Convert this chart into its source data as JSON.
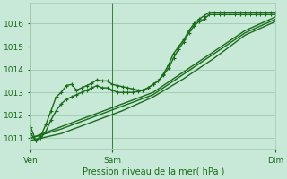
{
  "title": "",
  "xlabel": "Pression niveau de la mer( hPa )",
  "ylabel": "",
  "bg_color": "#c8e8d8",
  "grid_color": "#a0c8b0",
  "line_color": "#1a6b1a",
  "ylim": [
    1010.5,
    1016.9
  ],
  "xlim": [
    0,
    48
  ],
  "xtick_positions": [
    0,
    16,
    48
  ],
  "xtick_labels": [
    "Ven",
    "Sam",
    "Dim"
  ],
  "ytick_positions": [
    1011,
    1012,
    1013,
    1014,
    1015,
    1016
  ],
  "ytick_labels": [
    "1011",
    "1012",
    "1013",
    "1014",
    "1015",
    "1016"
  ],
  "series": [
    {
      "x": [
        0,
        1,
        2,
        3,
        4,
        5,
        6,
        7,
        8,
        9,
        10,
        11,
        12,
        13,
        14,
        15,
        16,
        17,
        18,
        19,
        20,
        21,
        22,
        23,
        24,
        25,
        26,
        27,
        28,
        29,
        30,
        31,
        32,
        33,
        34,
        35,
        36,
        37,
        38,
        39,
        40,
        41,
        42,
        43,
        44,
        45,
        46,
        47,
        48
      ],
      "y": [
        1011.5,
        1010.9,
        1011.1,
        1011.6,
        1012.2,
        1012.8,
        1013.0,
        1013.3,
        1013.35,
        1013.1,
        1013.2,
        1013.3,
        1013.4,
        1013.55,
        1013.5,
        1013.5,
        1013.35,
        1013.3,
        1013.25,
        1013.2,
        1013.15,
        1013.1,
        1013.1,
        1013.2,
        1013.35,
        1013.5,
        1013.8,
        1014.2,
        1014.7,
        1015.0,
        1015.3,
        1015.7,
        1016.0,
        1016.2,
        1016.35,
        1016.5,
        1016.5,
        1016.5,
        1016.5,
        1016.5,
        1016.5,
        1016.5,
        1016.5,
        1016.5,
        1016.5,
        1016.5,
        1016.5,
        1016.5,
        1016.5
      ]
    },
    {
      "x": [
        0,
        1,
        2,
        3,
        4,
        5,
        6,
        7,
        8,
        9,
        10,
        11,
        12,
        13,
        14,
        15,
        16,
        17,
        18,
        19,
        20,
        21,
        22,
        23,
        24,
        25,
        26,
        27,
        28,
        29,
        30,
        31,
        32,
        33,
        34,
        35,
        36,
        37,
        38,
        39,
        40,
        41,
        42,
        43,
        44,
        45,
        46,
        47,
        48
      ],
      "y": [
        1011.2,
        1010.9,
        1011.0,
        1011.3,
        1011.8,
        1012.2,
        1012.5,
        1012.7,
        1012.8,
        1012.9,
        1013.0,
        1013.1,
        1013.2,
        1013.3,
        1013.2,
        1013.2,
        1013.1,
        1013.0,
        1013.0,
        1013.0,
        1013.0,
        1013.05,
        1013.1,
        1013.2,
        1013.35,
        1013.5,
        1013.75,
        1014.05,
        1014.5,
        1014.9,
        1015.2,
        1015.6,
        1015.9,
        1016.1,
        1016.2,
        1016.4,
        1016.4,
        1016.4,
        1016.4,
        1016.4,
        1016.4,
        1016.4,
        1016.4,
        1016.4,
        1016.4,
        1016.4,
        1016.4,
        1016.4,
        1016.4
      ]
    },
    {
      "x": [
        0,
        6,
        12,
        18,
        24,
        30,
        36,
        42,
        48
      ],
      "y": [
        1011.0,
        1011.5,
        1012.0,
        1012.5,
        1013.0,
        1013.9,
        1014.8,
        1015.7,
        1016.3
      ]
    },
    {
      "x": [
        0,
        6,
        12,
        18,
        24,
        30,
        36,
        42,
        48
      ],
      "y": [
        1011.0,
        1011.4,
        1011.9,
        1012.4,
        1012.9,
        1013.8,
        1014.7,
        1015.6,
        1016.2
      ]
    },
    {
      "x": [
        0,
        6,
        12,
        18,
        24,
        30,
        36,
        42,
        48
      ],
      "y": [
        1010.9,
        1011.2,
        1011.7,
        1012.2,
        1012.8,
        1013.6,
        1014.5,
        1015.5,
        1016.1
      ]
    }
  ]
}
